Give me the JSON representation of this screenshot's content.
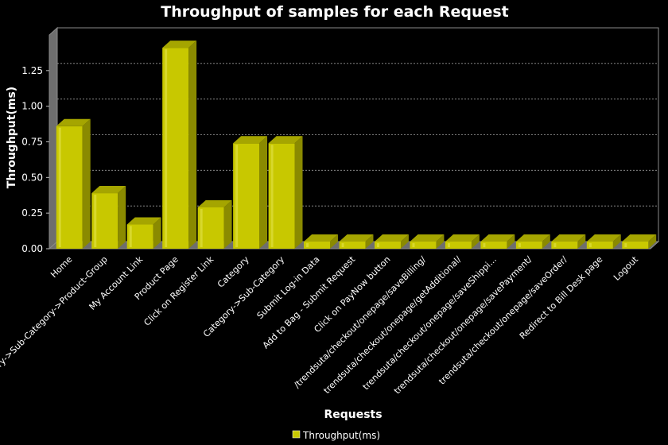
{
  "chart_data": {
    "type": "bar",
    "title": "Throughput of samples for each Request",
    "xlabel": "Requests",
    "ylabel": "Throughput(ms)",
    "ylim": [
      0,
      1.5
    ],
    "yticks": [
      "0.00",
      "0.25",
      "0.50",
      "0.75",
      "1.00",
      "1.25"
    ],
    "grid": true,
    "legend_position": "bottom",
    "categories": [
      "Home",
      "Category->Sub-Category->Product-Group",
      "My Account Link",
      "Product Page",
      "Click on Register Link",
      "Category",
      "Category->Sub-Category",
      "Submit Log-in Data",
      "Add to Bag - Submit Request",
      "Click on PayNow button",
      "/trendsuta/checkout/onepage/saveBilling/",
      "trendsuta/checkout/onepage/getAdditional/",
      "trendsuta/checkout/onepage/saveShippi...",
      "trendsuta/checkout/onepage/savePayment/",
      "trendsuta/checkout/onepage/saveOrder/",
      "Redirect to Bill Desk page",
      "Logout"
    ],
    "series": [
      {
        "name": "Throughput(ms)",
        "color": "#c8c800",
        "values": [
          0.86,
          0.39,
          0.17,
          1.41,
          0.29,
          0.74,
          0.74,
          0.05,
          0.05,
          0.05,
          0.05,
          0.05,
          0.05,
          0.05,
          0.05,
          0.05,
          0.05
        ]
      }
    ]
  }
}
